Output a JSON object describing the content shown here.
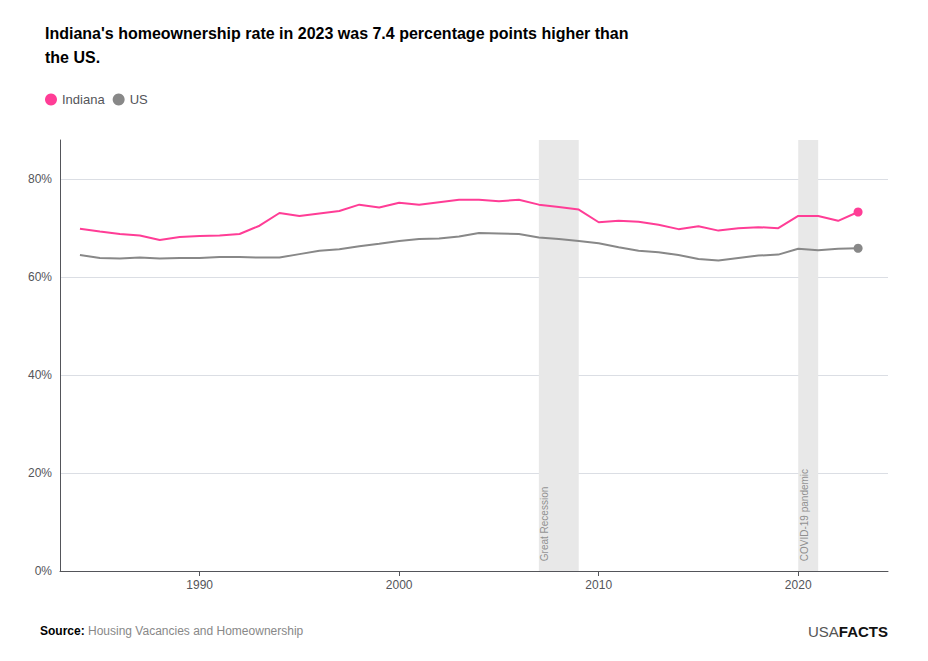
{
  "chart_data": {
    "type": "line",
    "title": "Indiana's homeownership rate in 2023 was 7.4 percentage points higher than\nthe US.",
    "x": [
      1984,
      1985,
      1986,
      1987,
      1988,
      1989,
      1990,
      1991,
      1992,
      1993,
      1994,
      1995,
      1996,
      1997,
      1998,
      1999,
      2000,
      2001,
      2002,
      2003,
      2004,
      2005,
      2006,
      2007,
      2008,
      2009,
      2010,
      2011,
      2012,
      2013,
      2014,
      2015,
      2016,
      2017,
      2018,
      2019,
      2020,
      2021,
      2022,
      2023
    ],
    "series": [
      {
        "name": "Indiana",
        "color": "#FF3D96",
        "values": [
          69.9,
          69.3,
          68.8,
          68.5,
          67.6,
          68.2,
          68.4,
          68.5,
          68.8,
          70.5,
          73.1,
          72.5,
          73.0,
          73.5,
          74.8,
          74.2,
          75.2,
          74.8,
          75.3,
          75.8,
          75.8,
          75.5,
          75.8,
          74.8,
          74.3,
          73.8,
          71.2,
          71.5,
          71.3,
          70.7,
          69.8,
          70.4,
          69.5,
          70.0,
          70.2,
          70.0,
          72.5,
          72.5,
          71.5,
          73.3
        ]
      },
      {
        "name": "US",
        "color": "#888888",
        "values": [
          64.5,
          63.9,
          63.8,
          64.0,
          63.8,
          63.9,
          63.9,
          64.1,
          64.1,
          64.0,
          64.0,
          64.7,
          65.4,
          65.7,
          66.3,
          66.8,
          67.4,
          67.8,
          67.9,
          68.3,
          69.0,
          68.9,
          68.8,
          68.1,
          67.8,
          67.4,
          66.9,
          66.1,
          65.4,
          65.1,
          64.5,
          63.7,
          63.4,
          63.9,
          64.4,
          64.6,
          65.8,
          65.5,
          65.8,
          65.9
        ]
      }
    ],
    "marker": "last",
    "annotations": [
      {
        "text": "Great Recession",
        "x_start": 2007,
        "x_end": 2009,
        "y": 2,
        "color": "#e8e8e8"
      },
      {
        "text": "COVID-19 pandemic",
        "x_start": 2020,
        "x_end": 2021,
        "y": 2,
        "color": "#e8e8e8"
      }
    ],
    "xlim": [
      1983,
      2024.5
    ],
    "xticks": [
      1990,
      2000,
      2010,
      2020
    ],
    "ylim": [
      0,
      88
    ],
    "yticks": [
      {
        "value": 0,
        "label": "0%"
      },
      {
        "value": 20,
        "label": "20%"
      },
      {
        "value": 40,
        "label": "40%"
      },
      {
        "value": 60,
        "label": "60%"
      },
      {
        "value": 80,
        "label": "80%"
      }
    ],
    "grid": true,
    "legend": "top-left",
    "source": {
      "label": "Source:",
      "text": "Housing Vacancies and Homeownership"
    },
    "credit": [
      "USA",
      "FACTS"
    ]
  }
}
